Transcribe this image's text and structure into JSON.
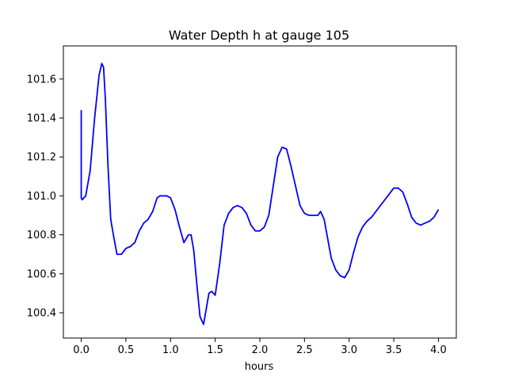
{
  "chart_data": {
    "type": "line",
    "title": "Water Depth h at gauge 105",
    "xlabel": "hours",
    "ylabel": "",
    "xlim": [
      -0.2,
      4.2
    ],
    "ylim": [
      100.27,
      101.77
    ],
    "xticks": [
      0.0,
      0.5,
      1.0,
      1.5,
      2.0,
      2.5,
      3.0,
      3.5,
      4.0
    ],
    "xtick_labels": [
      "0.0",
      "0.5",
      "1.0",
      "1.5",
      "2.0",
      "2.5",
      "3.0",
      "3.5",
      "4.0"
    ],
    "yticks": [
      100.4,
      100.6,
      100.8,
      101.0,
      101.2,
      101.4,
      101.6
    ],
    "ytick_labels": [
      "100.4",
      "100.6",
      "100.8",
      "101.0",
      "101.2",
      "101.4",
      "101.6"
    ],
    "grid": false,
    "series": [
      {
        "color": "#0000ff",
        "x": [
          0.0,
          0.0,
          0.01,
          0.05,
          0.1,
          0.15,
          0.2,
          0.23,
          0.25,
          0.27,
          0.3,
          0.33,
          0.36,
          0.4,
          0.45,
          0.5,
          0.55,
          0.6,
          0.65,
          0.7,
          0.75,
          0.8,
          0.85,
          0.88,
          0.92,
          0.96,
          1.0,
          1.05,
          1.1,
          1.15,
          1.2,
          1.23,
          1.26,
          1.3,
          1.33,
          1.37,
          1.4,
          1.43,
          1.46,
          1.5,
          1.55,
          1.6,
          1.65,
          1.7,
          1.75,
          1.8,
          1.85,
          1.9,
          1.95,
          2.0,
          2.05,
          2.1,
          2.15,
          2.2,
          2.25,
          2.3,
          2.35,
          2.4,
          2.45,
          2.5,
          2.55,
          2.6,
          2.65,
          2.68,
          2.72,
          2.76,
          2.8,
          2.85,
          2.9,
          2.95,
          3.0,
          3.05,
          3.1,
          3.15,
          3.2,
          3.25,
          3.3,
          3.35,
          3.4,
          3.45,
          3.5,
          3.55,
          3.6,
          3.65,
          3.7,
          3.75,
          3.8,
          3.85,
          3.9,
          3.95,
          4.0
        ],
        "y": [
          101.44,
          100.99,
          100.98,
          101.0,
          101.13,
          101.4,
          101.62,
          101.68,
          101.66,
          101.5,
          101.15,
          100.88,
          100.8,
          100.7,
          100.7,
          100.73,
          100.74,
          100.76,
          100.82,
          100.86,
          100.88,
          100.92,
          100.99,
          101.0,
          101.0,
          101.0,
          100.99,
          100.93,
          100.84,
          100.76,
          100.8,
          100.8,
          100.72,
          100.52,
          100.38,
          100.34,
          100.42,
          100.5,
          100.51,
          100.49,
          100.65,
          100.85,
          100.91,
          100.94,
          100.95,
          100.94,
          100.91,
          100.85,
          100.82,
          100.82,
          100.84,
          100.9,
          101.05,
          101.2,
          101.25,
          101.24,
          101.15,
          101.05,
          100.95,
          100.91,
          100.9,
          100.9,
          100.9,
          100.92,
          100.88,
          100.78,
          100.68,
          100.62,
          100.59,
          100.58,
          100.62,
          100.71,
          100.79,
          100.84,
          100.87,
          100.89,
          100.92,
          100.95,
          100.98,
          101.01,
          101.04,
          101.04,
          101.02,
          100.96,
          100.89,
          100.86,
          100.85,
          100.86,
          100.87,
          100.89,
          100.93
        ]
      }
    ]
  }
}
